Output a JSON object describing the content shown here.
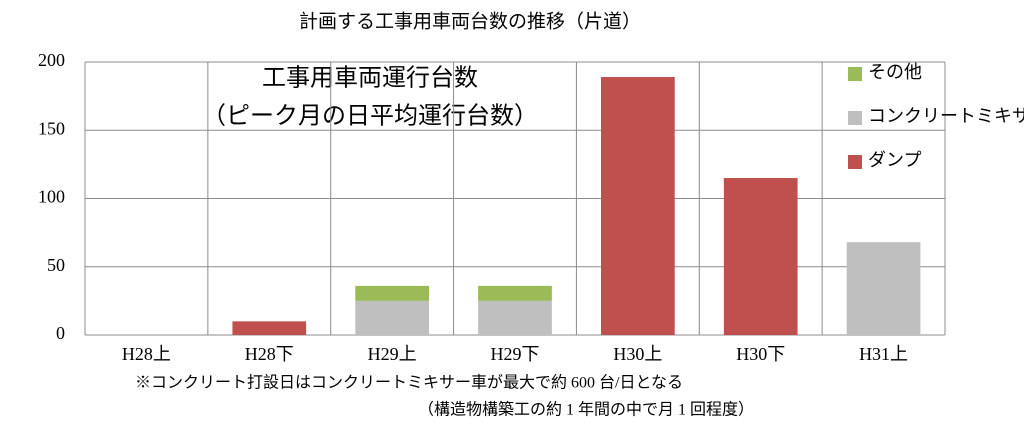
{
  "chart_data": {
    "type": "stacked_bar",
    "title": "計画する工事用車両台数の推移（片道）",
    "annotations": [
      "工事用車両運行台数",
      "（ピーク月の日平均運行台数）"
    ],
    "notes": [
      "※コンクリート打設日はコンクリートミキサー車が最大で約 600 台/日となる",
      "（構造物構築工の約 1 年間の中で月 1 回程度）"
    ],
    "categories": [
      "H28上",
      "H28下",
      "H29上",
      "H29下",
      "H30上",
      "H30下",
      "H31上"
    ],
    "series": [
      {
        "name": "ダンプ",
        "color": "#c0504d",
        "values": [
          0,
          10,
          0,
          0,
          189,
          115,
          0
        ]
      },
      {
        "name": "コンクリートミキサー車",
        "color": "#bfbfbf",
        "values": [
          0,
          0,
          25,
          25,
          0,
          0,
          68
        ]
      },
      {
        "name": "その他",
        "color": "#9bbb59",
        "values": [
          0,
          0,
          11,
          11,
          0,
          0,
          0
        ]
      }
    ],
    "ylim": [
      0,
      200
    ],
    "yticks": [
      0,
      50,
      100,
      150,
      200
    ],
    "grid": true,
    "legend": "right"
  }
}
